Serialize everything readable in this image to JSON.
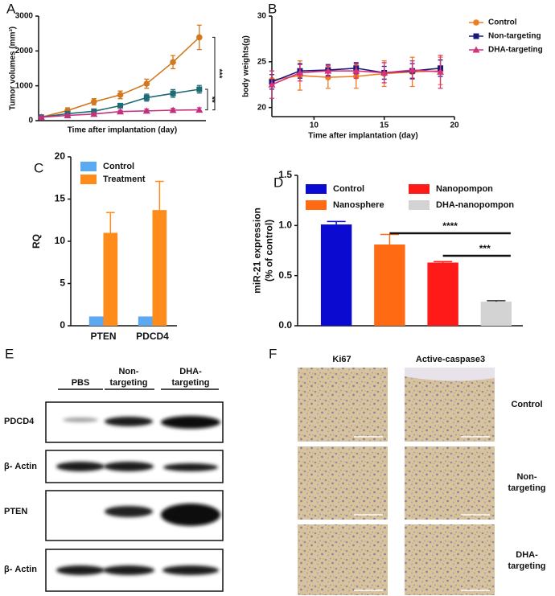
{
  "chart_data": [
    {
      "panel": "A",
      "type": "line",
      "ylabel": "Tumor volumes (mm³)",
      "xlabel": "Time after implantation (day)",
      "x": [
        7,
        9,
        11,
        13,
        15,
        17,
        19
      ],
      "xlim": [
        6.8,
        19.5
      ],
      "ylim": [
        0,
        3000
      ],
      "yticks": [
        0,
        1000,
        2000,
        3000
      ],
      "series": [
        {
          "color": "#d2781e",
          "marker": "circle",
          "values": [
            100,
            290,
            540,
            740,
            1060,
            1680,
            2390
          ],
          "errors": [
            30,
            80,
            90,
            110,
            130,
            190,
            350
          ]
        },
        {
          "color": "#1f6b75",
          "marker": "square",
          "values": [
            100,
            200,
            270,
            430,
            660,
            780,
            900
          ],
          "errors": [
            20,
            40,
            50,
            60,
            100,
            110,
            110
          ]
        },
        {
          "color": "#c2307e",
          "marker": "triangle",
          "values": [
            100,
            150,
            190,
            260,
            280,
            300,
            310
          ],
          "errors": [
            10,
            30,
            30,
            40,
            50,
            50,
            60
          ]
        }
      ],
      "annotations": [
        "***",
        "**"
      ]
    },
    {
      "panel": "B",
      "type": "line",
      "ylabel": "body weights(g)",
      "xlabel": "Time after implantation (day)",
      "x": [
        7,
        9,
        11,
        13,
        15,
        17,
        19
      ],
      "xlim": [
        7,
        20
      ],
      "xticks": [
        10,
        15,
        20
      ],
      "ylim": [
        19,
        30
      ],
      "yticks": [
        20,
        25,
        30
      ],
      "legend": "right",
      "series": [
        {
          "name": "Control",
          "color": "#f07c22",
          "marker": "circle",
          "values": [
            23.0,
            23.5,
            23.3,
            23.4,
            23.7,
            23.9,
            24.0
          ],
          "errors": [
            1.0,
            1.6,
            1.2,
            1.3,
            1.4,
            1.6,
            1.5
          ]
        },
        {
          "name": "Non-targeting",
          "color": "#1a1a7a",
          "marker": "square",
          "values": [
            22.8,
            24.0,
            24.1,
            24.3,
            23.8,
            24.0,
            24.3
          ],
          "errors": [
            0.8,
            0.8,
            0.6,
            0.6,
            0.7,
            0.8,
            0.9
          ]
        },
        {
          "name": "DHA-targeting",
          "color": "#d6337f",
          "marker": "triangle",
          "values": [
            22.5,
            23.8,
            24.0,
            24.0,
            23.8,
            24.1,
            23.9
          ],
          "errors": [
            1.5,
            0.9,
            0.6,
            0.8,
            1.1,
            1.0,
            1.8
          ]
        }
      ]
    },
    {
      "panel": "C",
      "type": "bar",
      "ylabel": "RQ",
      "categories": [
        "PTEN",
        "PDCD4"
      ],
      "ylim": [
        0,
        20
      ],
      "yticks": [
        0,
        5,
        10,
        15,
        20
      ],
      "legend": "top-left",
      "series": [
        {
          "name": "Control",
          "color": "#5aa9f2",
          "values": [
            1.1,
            1.1
          ]
        },
        {
          "name": "Treatment",
          "color": "#ff8c1a",
          "values": [
            11.0,
            13.7
          ],
          "errors": [
            2.4,
            3.4
          ]
        }
      ]
    },
    {
      "panel": "D",
      "type": "bar",
      "ylabel": [
        "miR-21 expression",
        "(% of control)"
      ],
      "categories": [
        null,
        null,
        null,
        null
      ],
      "ylim": [
        0,
        1.5
      ],
      "yticks": [
        {
          "value": 0,
          "label": "0.0"
        },
        0.5,
        {
          "value": 1,
          "label": "1.0"
        },
        {
          "value": 1.5,
          "label": "1.5"
        }
      ],
      "legend": "top",
      "series": [
        {
          "name": "Control",
          "color": "#0a0ad0",
          "values": [
            1.01,
            null,
            null,
            null
          ],
          "errors": [
            0.03,
            null,
            null,
            null
          ]
        },
        {
          "name": "Nanosphere",
          "color": "#ff6a13",
          "values": [
            null,
            0.81,
            null,
            null
          ],
          "errors": [
            null,
            0.1,
            null,
            null
          ]
        },
        {
          "name": "Nanopompon",
          "color": "#ff1a1a",
          "values": [
            null,
            null,
            0.63,
            null
          ],
          "errors": [
            null,
            null,
            0.01,
            null
          ]
        },
        {
          "name": "DHA-nanopompon",
          "color": "#d3d3d3",
          "values": [
            null,
            null,
            null,
            0.24
          ],
          "errors": [
            null,
            null,
            null,
            0.01
          ]
        }
      ],
      "annotations": [
        "****",
        "***"
      ]
    }
  ],
  "blot": {
    "panel": "E",
    "columns": [
      [
        "PBS"
      ],
      [
        "Non-",
        "targeting"
      ],
      [
        "DHA-",
        "targeting"
      ]
    ],
    "rows": [
      "PDCD4",
      "β- Actin",
      "PTEN",
      "β- Actin"
    ]
  },
  "histology": {
    "panel": "F",
    "columns": [
      "Ki67",
      "Active-caspase3"
    ],
    "rows": [
      [
        "Control"
      ],
      [
        "Non-",
        "targeting"
      ],
      [
        "DHA-",
        "targeting"
      ]
    ]
  }
}
